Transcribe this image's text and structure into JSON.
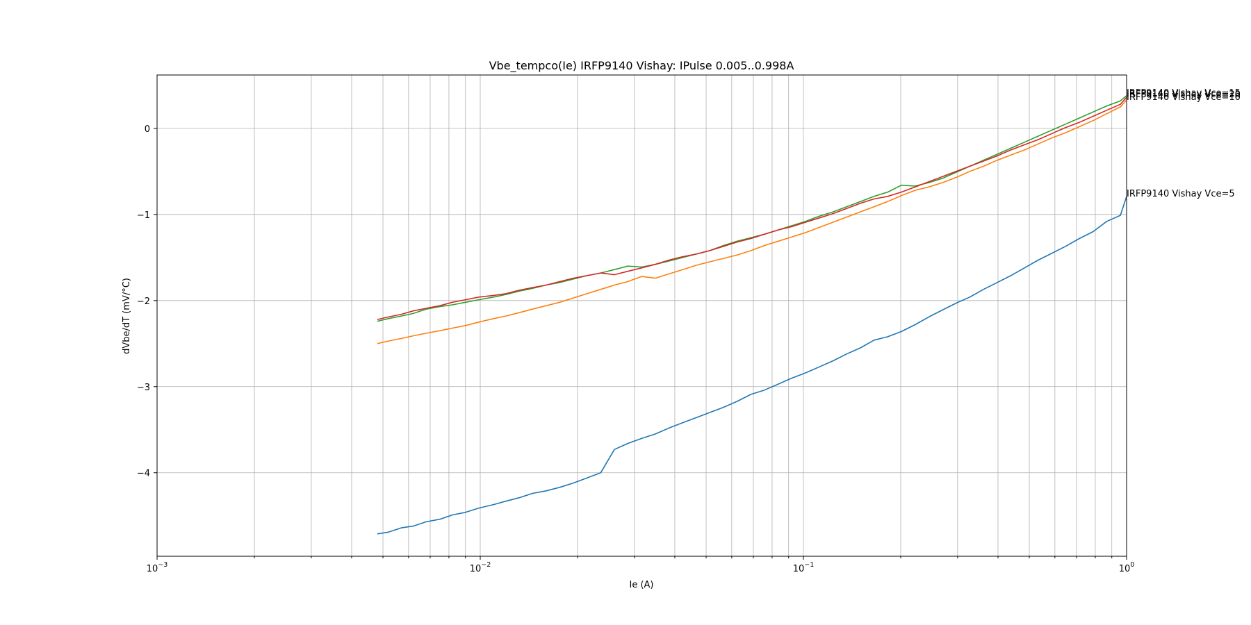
{
  "chart_data": {
    "type": "line",
    "title": "Vbe_tempco(Ie) IRFP9140 Vishay: IPulse 0.005..0.998A",
    "xlabel": "Ie (A)",
    "ylabel": "dVbe/dT (mV/°C)",
    "xscale": "log",
    "xlim": [
      0.001,
      1.0
    ],
    "ylim": [
      -4.97,
      0.62
    ],
    "grid": true,
    "x_major_ticks": [
      {
        "value": 0.001,
        "base": "10",
        "exp": "−3"
      },
      {
        "value": 0.01,
        "base": "10",
        "exp": "−2"
      },
      {
        "value": 0.1,
        "base": "10",
        "exp": "−1"
      },
      {
        "value": 1.0,
        "base": "10",
        "exp": "0"
      }
    ],
    "y_ticks": [
      {
        "value": 0,
        "label": "0"
      },
      {
        "value": -1,
        "label": "−1"
      },
      {
        "value": -2,
        "label": "−2"
      },
      {
        "value": -3,
        "label": "−3"
      },
      {
        "value": -4,
        "label": "−4"
      }
    ],
    "series": [
      {
        "name": "IRFP9140 Vishay Vce=5",
        "color": "#1f77b4",
        "x": [
          0.0048,
          0.0052,
          0.0057,
          0.0062,
          0.0068,
          0.0075,
          0.0082,
          0.009,
          0.0099,
          0.011,
          0.012,
          0.0132,
          0.0145,
          0.016,
          0.0176,
          0.0194,
          0.0214,
          0.0236,
          0.026,
          0.0286,
          0.0316,
          0.0348,
          0.0384,
          0.0423,
          0.0466,
          0.0513,
          0.0566,
          0.0624,
          0.0688,
          0.0758,
          0.0836,
          0.0922,
          0.1016,
          0.112,
          0.1235,
          0.1361,
          0.15,
          0.1654,
          0.1823,
          0.201,
          0.2216,
          0.2443,
          0.2693,
          0.2969,
          0.3273,
          0.3608,
          0.3978,
          0.4385,
          0.4834,
          0.5329,
          0.5875,
          0.6477,
          0.714,
          0.7872,
          0.8678,
          0.9567,
          1.0
        ],
        "values": [
          -4.71,
          -4.69,
          -4.64,
          -4.62,
          -4.57,
          -4.54,
          -4.49,
          -4.46,
          -4.41,
          -4.37,
          -4.33,
          -4.29,
          -4.24,
          -4.21,
          -4.17,
          -4.12,
          -4.06,
          -4.0,
          -3.73,
          -3.66,
          -3.6,
          -3.55,
          -3.48,
          -3.42,
          -3.36,
          -3.3,
          -3.24,
          -3.17,
          -3.09,
          -3.04,
          -2.97,
          -2.9,
          -2.84,
          -2.77,
          -2.7,
          -2.62,
          -2.55,
          -2.46,
          -2.42,
          -2.36,
          -2.28,
          -2.19,
          -2.11,
          -2.03,
          -1.96,
          -1.87,
          -1.79,
          -1.71,
          -1.62,
          -1.53,
          -1.45,
          -1.37,
          -1.28,
          -1.2,
          -1.08,
          -1.01,
          -0.79
        ]
      },
      {
        "name": "IRFP9140 Vishay Vce=10",
        "color": "#ff7f0e",
        "x": [
          0.0048,
          0.0052,
          0.0057,
          0.0062,
          0.0068,
          0.0075,
          0.0082,
          0.009,
          0.0099,
          0.011,
          0.012,
          0.0132,
          0.0145,
          0.016,
          0.0176,
          0.0194,
          0.0214,
          0.0236,
          0.026,
          0.0286,
          0.0316,
          0.0348,
          0.0384,
          0.0423,
          0.0466,
          0.0513,
          0.0566,
          0.0624,
          0.0688,
          0.0758,
          0.0836,
          0.0922,
          0.1016,
          0.112,
          0.1235,
          0.1361,
          0.15,
          0.1654,
          0.1823,
          0.201,
          0.2216,
          0.2443,
          0.2693,
          0.2969,
          0.3273,
          0.3608,
          0.3978,
          0.4385,
          0.4834,
          0.5329,
          0.5875,
          0.6477,
          0.714,
          0.7872,
          0.8678,
          0.9567,
          1.0
        ],
        "values": [
          -2.5,
          -2.47,
          -2.44,
          -2.41,
          -2.38,
          -2.35,
          -2.32,
          -2.29,
          -2.25,
          -2.21,
          -2.18,
          -2.14,
          -2.1,
          -2.06,
          -2.02,
          -1.97,
          -1.92,
          -1.87,
          -1.82,
          -1.78,
          -1.72,
          -1.74,
          -1.69,
          -1.64,
          -1.59,
          -1.55,
          -1.51,
          -1.47,
          -1.42,
          -1.36,
          -1.31,
          -1.26,
          -1.21,
          -1.15,
          -1.09,
          -1.03,
          -0.97,
          -0.91,
          -0.85,
          -0.78,
          -0.72,
          -0.68,
          -0.63,
          -0.57,
          -0.5,
          -0.44,
          -0.37,
          -0.31,
          -0.25,
          -0.18,
          -0.11,
          -0.05,
          0.02,
          0.09,
          0.17,
          0.25,
          0.33
        ]
      },
      {
        "name": "IRFP9140 Vishay Vce=15",
        "color": "#2ca02c",
        "x": [
          0.0048,
          0.0052,
          0.0057,
          0.0062,
          0.0068,
          0.0075,
          0.0082,
          0.009,
          0.0099,
          0.011,
          0.012,
          0.0132,
          0.0145,
          0.016,
          0.0176,
          0.0194,
          0.0214,
          0.0236,
          0.026,
          0.0286,
          0.0316,
          0.0348,
          0.0384,
          0.0423,
          0.0466,
          0.0513,
          0.0566,
          0.0624,
          0.0688,
          0.0758,
          0.0836,
          0.0922,
          0.1016,
          0.112,
          0.1235,
          0.1361,
          0.15,
          0.1654,
          0.1823,
          0.201,
          0.2216,
          0.2443,
          0.2693,
          0.2969,
          0.3273,
          0.3608,
          0.3978,
          0.4385,
          0.4834,
          0.5329,
          0.5875,
          0.6477,
          0.714,
          0.7872,
          0.8678,
          0.9567,
          1.0
        ],
        "values": [
          -2.24,
          -2.21,
          -2.18,
          -2.15,
          -2.1,
          -2.07,
          -2.05,
          -2.02,
          -1.99,
          -1.96,
          -1.93,
          -1.89,
          -1.86,
          -1.82,
          -1.79,
          -1.75,
          -1.71,
          -1.68,
          -1.64,
          -1.6,
          -1.61,
          -1.58,
          -1.54,
          -1.5,
          -1.46,
          -1.42,
          -1.36,
          -1.31,
          -1.27,
          -1.23,
          -1.18,
          -1.13,
          -1.08,
          -1.02,
          -0.97,
          -0.91,
          -0.85,
          -0.79,
          -0.74,
          -0.66,
          -0.67,
          -0.63,
          -0.58,
          -0.51,
          -0.44,
          -0.37,
          -0.3,
          -0.23,
          -0.16,
          -0.09,
          -0.02,
          0.05,
          0.12,
          0.19,
          0.26,
          0.32,
          0.38
        ]
      },
      {
        "name": "IRFP9140 Vishay Vce=20",
        "color": "#d62728",
        "x": [
          0.0048,
          0.0052,
          0.0057,
          0.0062,
          0.0068,
          0.0075,
          0.0082,
          0.009,
          0.0099,
          0.011,
          0.012,
          0.0132,
          0.0145,
          0.016,
          0.0176,
          0.0194,
          0.0214,
          0.0236,
          0.026,
          0.0286,
          0.0316,
          0.0348,
          0.0384,
          0.0423,
          0.0466,
          0.0513,
          0.0566,
          0.0624,
          0.0688,
          0.0758,
          0.0836,
          0.0922,
          0.1016,
          0.112,
          0.1235,
          0.1361,
          0.15,
          0.1654,
          0.1823,
          0.201,
          0.2216,
          0.2443,
          0.2693,
          0.2969,
          0.3273,
          0.3608,
          0.3978,
          0.4385,
          0.4834,
          0.5329,
          0.5875,
          0.6477,
          0.714,
          0.7872,
          0.8678,
          0.9567,
          1.0
        ],
        "values": [
          -2.22,
          -2.19,
          -2.16,
          -2.12,
          -2.09,
          -2.06,
          -2.02,
          -1.99,
          -1.96,
          -1.94,
          -1.92,
          -1.88,
          -1.85,
          -1.82,
          -1.78,
          -1.74,
          -1.71,
          -1.68,
          -1.7,
          -1.66,
          -1.62,
          -1.58,
          -1.53,
          -1.49,
          -1.46,
          -1.42,
          -1.37,
          -1.32,
          -1.28,
          -1.23,
          -1.18,
          -1.14,
          -1.09,
          -1.04,
          -0.99,
          -0.93,
          -0.87,
          -0.82,
          -0.79,
          -0.74,
          -0.68,
          -0.62,
          -0.56,
          -0.5,
          -0.44,
          -0.38,
          -0.32,
          -0.25,
          -0.19,
          -0.13,
          -0.06,
          0.01,
          0.07,
          0.14,
          0.21,
          0.28,
          0.36
        ]
      }
    ]
  }
}
